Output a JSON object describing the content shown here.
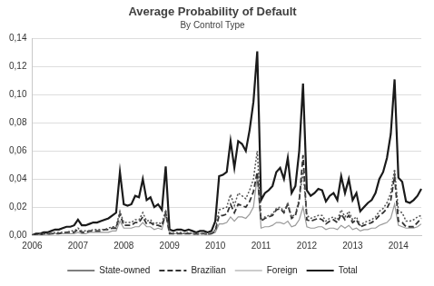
{
  "chart_data": {
    "type": "line",
    "title": "Average Probability of Default",
    "subtitle": "By Control Type",
    "categories": [
      "2006",
      null,
      null,
      null,
      null,
      null,
      null,
      null,
      null,
      null,
      null,
      null,
      "2007",
      null,
      null,
      null,
      null,
      null,
      null,
      null,
      null,
      null,
      null,
      null,
      "2008",
      null,
      null,
      null,
      null,
      null,
      null,
      null,
      null,
      null,
      null,
      null,
      "2009",
      null,
      null,
      null,
      null,
      null,
      null,
      null,
      null,
      null,
      null,
      null,
      "2010",
      null,
      null,
      null,
      null,
      null,
      null,
      null,
      null,
      null,
      null,
      null,
      "2011",
      null,
      null,
      null,
      null,
      null,
      null,
      null,
      null,
      null,
      null,
      null,
      "2012",
      null,
      null,
      null,
      null,
      null,
      null,
      null,
      null,
      null,
      null,
      null,
      "2013",
      null,
      null,
      null,
      null,
      null,
      null,
      null,
      null,
      null,
      null,
      null,
      "2014",
      null,
      null,
      null,
      null,
      null,
      null
    ],
    "series": [
      {
        "name": "State-owned",
        "color": "#555555",
        "line_style": "dotted",
        "values": [
          0.0,
          0.0,
          0.001,
          0.001,
          0.001,
          0.001,
          0.002,
          0.002,
          0.002,
          0.002,
          0.003,
          0.003,
          0.005,
          0.003,
          0.003,
          0.003,
          0.004,
          0.004,
          0.004,
          0.004,
          0.005,
          0.006,
          0.006,
          0.017,
          0.009,
          0.009,
          0.009,
          0.011,
          0.011,
          0.016,
          0.01,
          0.011,
          0.008,
          0.009,
          0.008,
          0.018,
          0.002,
          0.001,
          0.002,
          0.002,
          0.001,
          0.002,
          0.001,
          0.001,
          0.001,
          0.001,
          0.001,
          0.001,
          0.004,
          0.018,
          0.019,
          0.02,
          0.029,
          0.021,
          0.03,
          0.028,
          0.026,
          0.032,
          0.04,
          0.06,
          0.011,
          0.013,
          0.014,
          0.015,
          0.019,
          0.02,
          0.017,
          0.023,
          0.013,
          0.015,
          0.026,
          0.045,
          0.014,
          0.012,
          0.013,
          0.014,
          0.014,
          0.01,
          0.012,
          0.013,
          0.011,
          0.018,
          0.013,
          0.017,
          0.011,
          0.013,
          0.007,
          0.009,
          0.01,
          0.011,
          0.013,
          0.017,
          0.019,
          0.023,
          0.03,
          0.047,
          0.017,
          0.016,
          0.01,
          0.01,
          0.011,
          0.013,
          0.014
        ]
      },
      {
        "name": "Brazilian",
        "color": "#333333",
        "line_style": "dashed",
        "values": [
          0.0,
          0.0,
          0.0,
          0.001,
          0.001,
          0.001,
          0.001,
          0.001,
          0.002,
          0.002,
          0.002,
          0.002,
          0.004,
          0.002,
          0.002,
          0.003,
          0.003,
          0.003,
          0.003,
          0.004,
          0.004,
          0.005,
          0.005,
          0.015,
          0.007,
          0.007,
          0.007,
          0.009,
          0.009,
          0.013,
          0.008,
          0.009,
          0.007,
          0.007,
          0.006,
          0.016,
          0.001,
          0.001,
          0.001,
          0.001,
          0.001,
          0.001,
          0.001,
          0.001,
          0.001,
          0.001,
          0.001,
          0.001,
          0.003,
          0.014,
          0.014,
          0.015,
          0.022,
          0.016,
          0.022,
          0.021,
          0.02,
          0.024,
          0.031,
          0.045,
          0.01,
          0.012,
          0.013,
          0.014,
          0.018,
          0.019,
          0.016,
          0.022,
          0.012,
          0.014,
          0.024,
          0.057,
          0.011,
          0.01,
          0.011,
          0.012,
          0.011,
          0.008,
          0.01,
          0.011,
          0.009,
          0.015,
          0.011,
          0.014,
          0.009,
          0.011,
          0.006,
          0.007,
          0.008,
          0.009,
          0.011,
          0.014,
          0.016,
          0.019,
          0.025,
          0.042,
          0.01,
          0.009,
          0.006,
          0.006,
          0.006,
          0.009,
          0.012
        ]
      },
      {
        "name": "Foreign",
        "color": "#9a9a9a",
        "line_style": "solid",
        "values": [
          0.0,
          0.0,
          0.0,
          0.0,
          0.0,
          0.001,
          0.001,
          0.001,
          0.001,
          0.001,
          0.001,
          0.001,
          0.002,
          0.001,
          0.001,
          0.002,
          0.002,
          0.002,
          0.002,
          0.002,
          0.002,
          0.003,
          0.003,
          0.01,
          0.005,
          0.005,
          0.005,
          0.006,
          0.006,
          0.009,
          0.006,
          0.006,
          0.004,
          0.005,
          0.004,
          0.015,
          0.001,
          0.001,
          0.001,
          0.001,
          0.001,
          0.001,
          0.001,
          0.0,
          0.001,
          0.001,
          0.0,
          0.001,
          0.002,
          0.008,
          0.008,
          0.009,
          0.013,
          0.01,
          0.013,
          0.013,
          0.012,
          0.015,
          0.02,
          0.042,
          0.005,
          0.006,
          0.006,
          0.007,
          0.009,
          0.009,
          0.008,
          0.01,
          0.006,
          0.007,
          0.011,
          0.02,
          0.006,
          0.005,
          0.005,
          0.006,
          0.006,
          0.004,
          0.005,
          0.005,
          0.004,
          0.007,
          0.005,
          0.007,
          0.004,
          0.005,
          0.003,
          0.004,
          0.004,
          0.005,
          0.005,
          0.007,
          0.008,
          0.009,
          0.012,
          0.022,
          0.007,
          0.006,
          0.005,
          0.005,
          0.005,
          0.006,
          0.008
        ]
      },
      {
        "name": "Total",
        "color": "#1a1a1a",
        "line_style": "solid",
        "values": [
          0.0,
          0.001,
          0.001,
          0.002,
          0.002,
          0.003,
          0.004,
          0.004,
          0.005,
          0.006,
          0.006,
          0.007,
          0.011,
          0.007,
          0.007,
          0.008,
          0.009,
          0.009,
          0.01,
          0.011,
          0.012,
          0.014,
          0.016,
          0.045,
          0.022,
          0.021,
          0.022,
          0.028,
          0.027,
          0.04,
          0.025,
          0.027,
          0.02,
          0.022,
          0.018,
          0.049,
          0.004,
          0.003,
          0.004,
          0.004,
          0.003,
          0.004,
          0.003,
          0.002,
          0.003,
          0.003,
          0.002,
          0.003,
          0.01,
          0.042,
          0.043,
          0.045,
          0.067,
          0.048,
          0.067,
          0.065,
          0.06,
          0.075,
          0.095,
          0.131,
          0.025,
          0.03,
          0.032,
          0.035,
          0.045,
          0.048,
          0.04,
          0.055,
          0.03,
          0.035,
          0.06,
          0.108,
          0.032,
          0.028,
          0.03,
          0.033,
          0.032,
          0.024,
          0.028,
          0.03,
          0.025,
          0.042,
          0.03,
          0.04,
          0.025,
          0.03,
          0.017,
          0.02,
          0.023,
          0.025,
          0.03,
          0.04,
          0.045,
          0.055,
          0.072,
          0.111,
          0.041,
          0.038,
          0.024,
          0.023,
          0.025,
          0.028,
          0.033
        ]
      }
    ],
    "ylim": [
      0,
      0.14
    ],
    "yticks": [
      {
        "value": 0,
        "label": "0,00"
      },
      {
        "value": 0.02,
        "label": "0,02"
      },
      {
        "value": 0.04,
        "label": "0,04"
      },
      {
        "value": 0.06,
        "label": "0,06"
      },
      {
        "value": 0.08,
        "label": "0,08"
      },
      {
        "value": 0.1,
        "label": "0,10"
      },
      {
        "value": 0.12,
        "label": "0,12"
      },
      {
        "value": 0.14,
        "label": "0,14"
      }
    ],
    "grid": true,
    "legend": "bottom"
  }
}
